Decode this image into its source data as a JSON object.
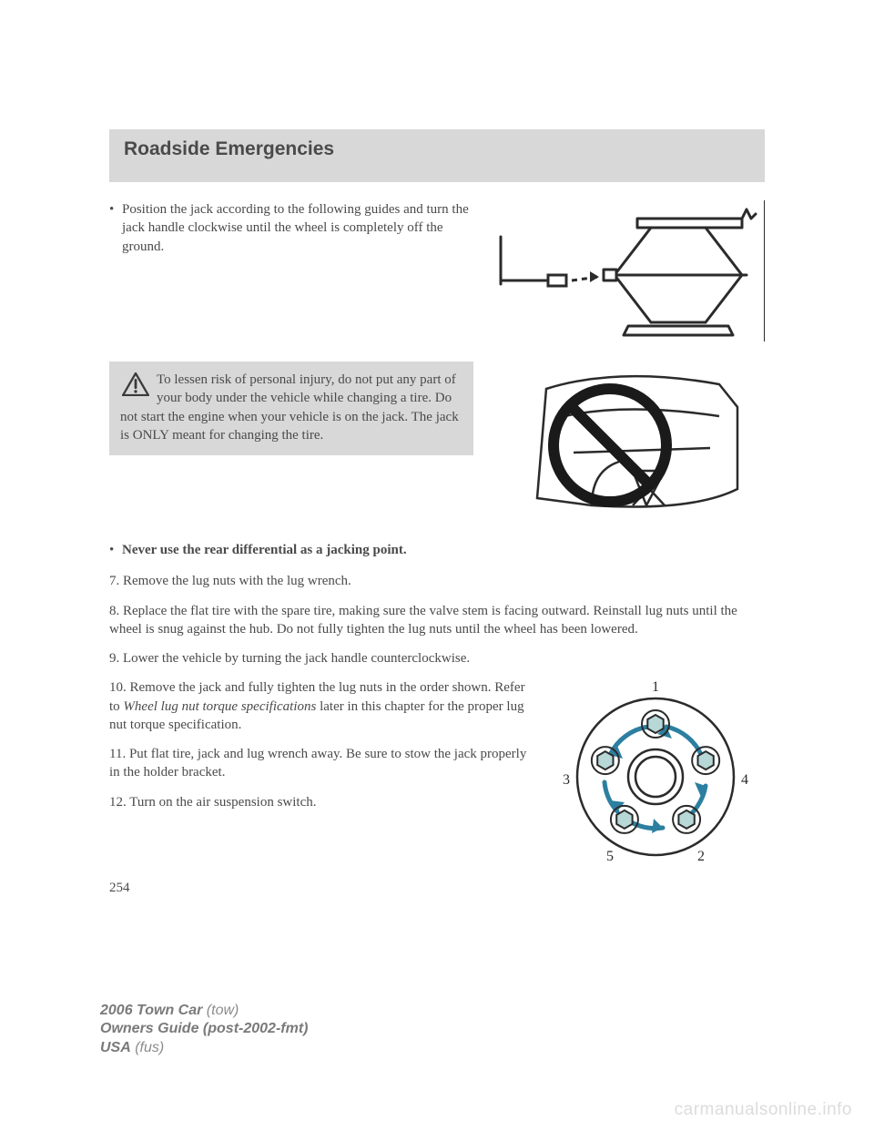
{
  "section_title": "Roadside Emergencies",
  "bullet1": "Position the jack according to the following guides and turn the jack handle clockwise until the wheel is completely off the ground.",
  "warning_text": "To lessen risk of personal injury, do not put any part of your body under the vehicle while changing a tire. Do not start the engine when your vehicle is on the jack. The jack is ONLY meant for changing the tire.",
  "bullet2": "Never use the rear differential as a jacking point.",
  "step7": "7. Remove the lug nuts with the lug wrench.",
  "step8": "8. Replace the flat tire with the spare tire, making sure the valve stem is facing outward. Reinstall lug nuts until the wheel is snug against the hub. Do not fully tighten the lug nuts until the wheel has been lowered.",
  "step9": "9. Lower the vehicle by turning the jack handle counterclockwise.",
  "step10_a": "10. Remove the jack and fully tighten the lug nuts in the order shown. Refer to ",
  "step10_i": "Wheel lug nut torque specifications",
  "step10_b": " later in this chapter for the proper lug nut torque specification.",
  "step11": "11. Put flat tire, jack and lug wrench away. Be sure to stow the jack properly in the holder bracket.",
  "step12": "12. Turn on the air suspension switch.",
  "page_number": "254",
  "footer_model": "2006 Town Car",
  "footer_model_code": " (tow)",
  "footer_guide": "Owners Guide (post-2002-fmt)",
  "footer_region": "USA",
  "footer_region_code": " (fus)",
  "watermark": "carmanualsonline.info",
  "lugnut_labels": [
    "1",
    "2",
    "3",
    "4",
    "5"
  ],
  "colors": {
    "header_bg": "#d8d8d8",
    "text": "#4a4a4a",
    "footer": "#8c8c8c",
    "watermark": "#dcdcdc",
    "lug_arrow": "#2c7fa0",
    "lug_fill": "#b8d8d8"
  }
}
